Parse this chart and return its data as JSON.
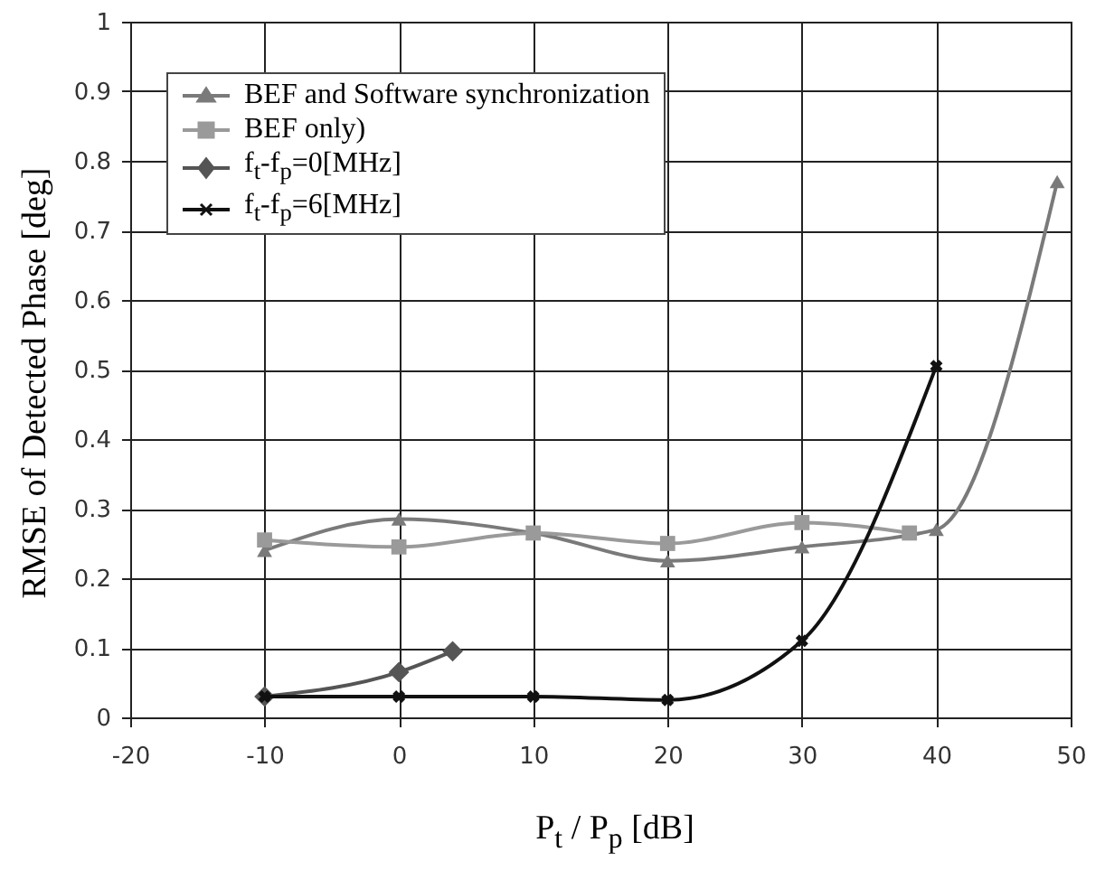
{
  "chart_data": {
    "type": "line",
    "xlabel": "P$_{t}$ / P$_{p}$ [dB]",
    "ylabel": "RMSE of Detected Phase [deg]",
    "xlim": [
      -20,
      50
    ],
    "xticks": [
      -20,
      -10,
      0,
      10,
      20,
      30,
      40,
      50
    ],
    "ylim": [
      0,
      1
    ],
    "yticks": [
      0,
      0.1,
      0.2,
      0.3,
      0.4,
      0.5,
      0.6,
      0.7,
      0.8,
      0.9,
      1
    ],
    "grid": true,
    "legend": "top left",
    "series": [
      {
        "name": "BEF and Software synchronization",
        "color": "#7a7a7a",
        "marker": "triangle",
        "x": [
          -10,
          0,
          10,
          20,
          30,
          40,
          49
        ],
        "values": [
          0.24,
          0.285,
          0.265,
          0.225,
          0.245,
          0.27,
          0.77
        ]
      },
      {
        "name": "BEF only)",
        "color": "#9a9a9a",
        "marker": "square",
        "x": [
          -10,
          0,
          10,
          20,
          30,
          38
        ],
        "values": [
          0.255,
          0.245,
          0.265,
          0.25,
          0.28,
          0.265
        ]
      },
      {
        "name": "f$_{t}$-f$_{p}$=0[MHz]",
        "color": "#555555",
        "marker": "diamond",
        "x": [
          -10,
          0,
          4
        ],
        "values": [
          0.03,
          0.065,
          0.095
        ]
      },
      {
        "name": "f$_{t}$-f$_{p}$=6[MHz]",
        "color": "#111111",
        "marker": "cross",
        "x": [
          -10,
          0,
          10,
          20,
          30,
          40
        ],
        "values": [
          0.03,
          0.03,
          0.03,
          0.025,
          0.11,
          0.505
        ]
      }
    ]
  }
}
